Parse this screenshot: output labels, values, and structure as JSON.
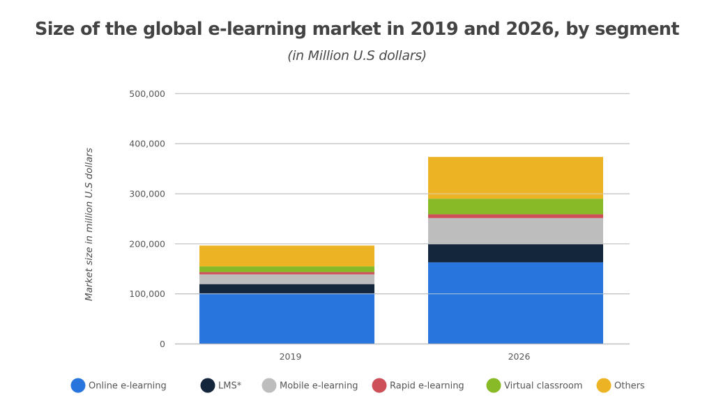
{
  "chart_data": {
    "type": "bar",
    "stacked": true,
    "title": "Size of the global e-learning market in 2019 and 2026, by segment",
    "subtitle": "(in Million U.S dollars)",
    "xlabel": "",
    "ylabel": "Market size in million U.S dollars",
    "ylim": [
      0,
      500000
    ],
    "yticks": [
      0,
      100000,
      200000,
      300000,
      400000,
      500000
    ],
    "ytick_labels": [
      "0",
      "100,000",
      "200,000",
      "300,000",
      "400,000",
      "500,000"
    ],
    "grid": true,
    "legend_position": "bottom",
    "categories": [
      "2019",
      "2026"
    ],
    "series": [
      {
        "name": "Online e-learning",
        "color": "#2775DD",
        "values": [
          101000,
          163000
        ]
      },
      {
        "name": "LMS*",
        "color": "#13263B",
        "values": [
          18500,
          36500
        ]
      },
      {
        "name": "Mobile e-learning",
        "color": "#BDBDBD",
        "values": [
          19500,
          52000
        ]
      },
      {
        "name": "Rapid e-learning",
        "color": "#CD4F58",
        "values": [
          4500,
          7500
        ]
      },
      {
        "name": "Virtual classroom",
        "color": "#88BA28",
        "values": [
          11500,
          31000
        ]
      },
      {
        "name": "Others",
        "color": "#ECB424",
        "values": [
          41500,
          83500
        ]
      }
    ]
  }
}
